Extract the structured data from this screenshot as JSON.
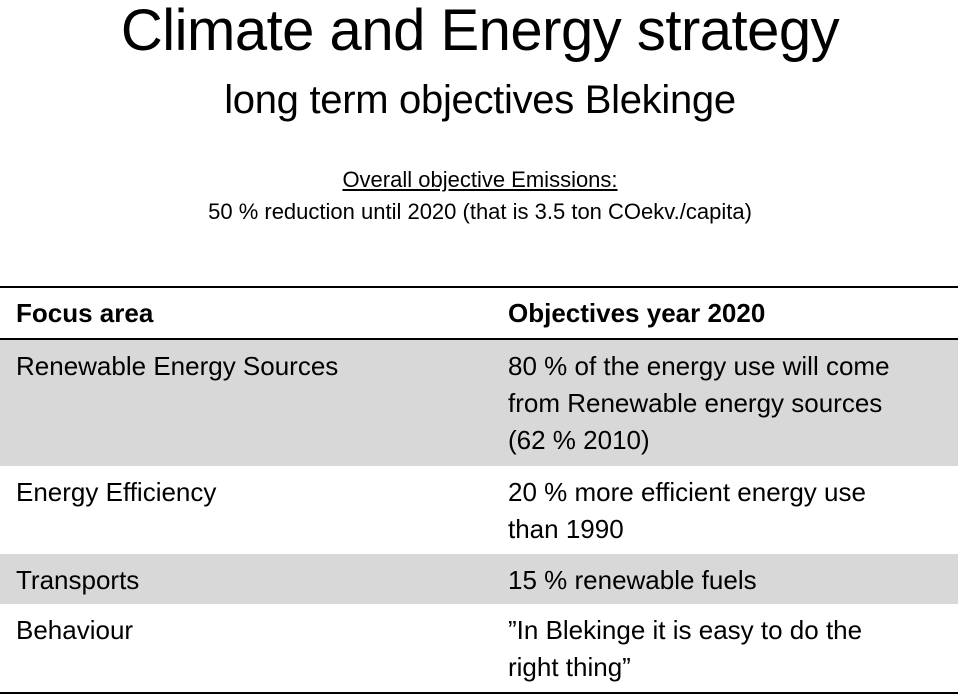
{
  "header": {
    "title": "Climate and Energy strategy",
    "subtitle": "long term objectives Blekinge"
  },
  "overall_objective": {
    "heading": "Overall objective Emissions:",
    "text": "50 % reduction until 2020 (that is 3.5 ton COekv./capita)"
  },
  "table": {
    "columns": [
      "Focus area",
      "Objectives year 2020"
    ],
    "rows": [
      {
        "focus_area": "Renewable Energy Sources",
        "objective_lines": [
          "80 % of the energy use will come",
          "from Renewable energy sources",
          "(62 % 2010)"
        ],
        "shaded": true
      },
      {
        "focus_area": "Energy Efficiency",
        "objective_lines": [
          "20 % more efficient energy use",
          "than 1990"
        ],
        "shaded": false
      },
      {
        "focus_area": "Transports",
        "objective_lines": [
          "15 % renewable fuels"
        ],
        "shaded": true
      },
      {
        "focus_area": "Behaviour",
        "objective_lines": [
          "”In Blekinge it is easy to do the",
          "right thing”"
        ],
        "shaded": false
      }
    ]
  },
  "colors": {
    "shaded_row": "#d8d8d8",
    "rule": "#000000"
  }
}
